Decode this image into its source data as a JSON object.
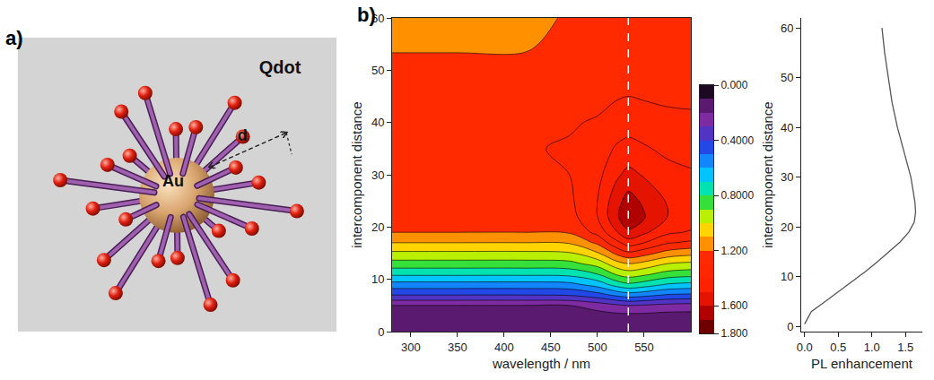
{
  "panel_labels": [
    "a)",
    "b)"
  ],
  "diagram": {
    "core_label": "Au",
    "medium_label": "Qdot",
    "distance_label": "d"
  },
  "chart_data": [
    {
      "type": "contour",
      "x_label": "wavelength / nm",
      "y_label": "intercomponent distance",
      "x": [
        280,
        350,
        420,
        470,
        500,
        520,
        533,
        550,
        575,
        600
      ],
      "y": [
        0,
        3,
        5,
        7,
        9,
        11,
        13,
        15,
        17,
        19,
        22,
        25,
        30,
        35,
        40,
        45,
        50,
        55,
        60
      ],
      "z": [
        [
          0.12,
          0.12,
          0.12,
          0.12,
          0.12,
          0.12,
          0.12,
          0.12,
          0.12,
          0.12
        ],
        [
          0.15,
          0.15,
          0.15,
          0.15,
          0.16,
          0.17,
          0.17,
          0.17,
          0.16,
          0.16
        ],
        [
          0.2,
          0.2,
          0.2,
          0.2,
          0.24,
          0.28,
          0.3,
          0.29,
          0.27,
          0.26
        ],
        [
          0.4,
          0.4,
          0.4,
          0.41,
          0.46,
          0.52,
          0.55,
          0.53,
          0.49,
          0.48
        ],
        [
          0.56,
          0.56,
          0.56,
          0.57,
          0.64,
          0.74,
          0.78,
          0.75,
          0.69,
          0.67
        ],
        [
          0.72,
          0.72,
          0.72,
          0.73,
          0.8,
          0.91,
          0.95,
          0.92,
          0.86,
          0.84
        ],
        [
          0.86,
          0.86,
          0.86,
          0.87,
          0.94,
          1.06,
          1.1,
          1.07,
          1.0,
          0.98
        ],
        [
          0.98,
          0.98,
          0.98,
          0.99,
          1.09,
          1.22,
          1.28,
          1.24,
          1.16,
          1.13
        ],
        [
          1.1,
          1.1,
          1.1,
          1.11,
          1.22,
          1.37,
          1.45,
          1.4,
          1.31,
          1.28
        ],
        [
          1.2,
          1.2,
          1.2,
          1.21,
          1.33,
          1.49,
          1.58,
          1.52,
          1.42,
          1.39
        ],
        [
          1.25,
          1.25,
          1.25,
          1.26,
          1.4,
          1.58,
          1.68,
          1.61,
          1.5,
          1.46
        ],
        [
          1.27,
          1.27,
          1.27,
          1.28,
          1.4,
          1.56,
          1.64,
          1.58,
          1.49,
          1.45
        ],
        [
          1.29,
          1.29,
          1.29,
          1.3,
          1.37,
          1.48,
          1.53,
          1.49,
          1.43,
          1.41
        ],
        [
          1.3,
          1.3,
          1.29,
          1.31,
          1.35,
          1.41,
          1.43,
          1.41,
          1.38,
          1.37
        ],
        [
          1.28,
          1.28,
          1.27,
          1.29,
          1.31,
          1.35,
          1.36,
          1.35,
          1.33,
          1.32
        ],
        [
          1.25,
          1.25,
          1.25,
          1.26,
          1.27,
          1.29,
          1.3,
          1.29,
          1.28,
          1.28
        ],
        [
          1.22,
          1.22,
          1.22,
          1.23,
          1.24,
          1.25,
          1.26,
          1.25,
          1.24,
          1.24
        ],
        [
          1.19,
          1.19,
          1.19,
          1.22,
          1.22,
          1.22,
          1.22,
          1.22,
          1.22,
          1.22
        ],
        [
          1.17,
          1.17,
          1.17,
          1.21,
          1.21,
          1.21,
          1.21,
          1.21,
          1.21,
          1.21
        ]
      ],
      "xlim": [
        280,
        600
      ],
      "xticks": [
        300,
        350,
        400,
        450,
        500,
        550
      ],
      "ylim": [
        0,
        60
      ],
      "yticks": [
        0,
        10,
        20,
        30,
        40,
        50,
        60
      ],
      "colorbar_range": [
        0,
        1.8
      ],
      "colorbar_ticks": [
        {
          "value": 0,
          "label": "0.000"
        },
        {
          "value": 0.4,
          "label": "0.4000"
        },
        {
          "value": 0.8,
          "label": "0.8000"
        },
        {
          "value": 1.2,
          "label": "1.200"
        },
        {
          "value": 1.6,
          "label": "1.600"
        },
        {
          "value": 1.8,
          "label": "1.800"
        }
      ],
      "level_step": 0.1,
      "highlight_x": 533
    },
    {
      "type": "line",
      "x_label": "PL enhancement",
      "y_label": "intercomponent distance",
      "x": [
        0,
        0.02,
        0.06,
        0.1,
        0.3,
        0.5,
        0.7,
        0.9,
        1.08,
        1.25,
        1.42,
        1.55,
        1.63,
        1.65,
        1.64,
        1.58,
        1.48,
        1.38,
        1.3,
        1.24,
        1.19,
        1.15
      ],
      "y": [
        0.5,
        1,
        2,
        3,
        5,
        7,
        9,
        11,
        13,
        15,
        17,
        19,
        21,
        23,
        25,
        30,
        35,
        40,
        45,
        50,
        55,
        60
      ],
      "color": "#555555",
      "xlim": [
        -0.05,
        1.75
      ],
      "xticks": [
        {
          "value": 0,
          "label": "0.0"
        },
        0.5,
        {
          "value": 1,
          "label": "1.0"
        },
        1.5
      ],
      "ylim": [
        -1,
        62
      ],
      "yticks": [
        0,
        10,
        20,
        30,
        40,
        50,
        60
      ]
    }
  ]
}
